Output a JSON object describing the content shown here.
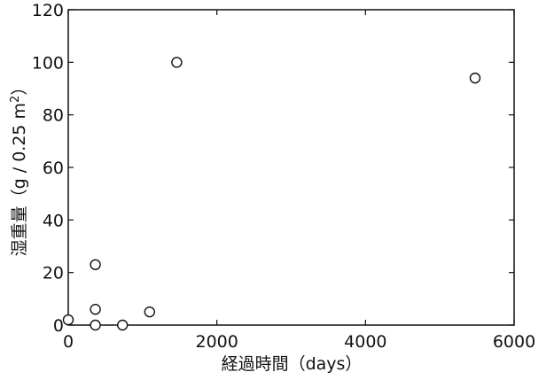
{
  "chart_data": {
    "type": "scatter",
    "title": "",
    "xlabel": "経過時間（days）",
    "ylabel_main": "湿重量（g / 0.25 m",
    "ylabel_sup": "2",
    "ylabel_end": "）",
    "xlim": [
      0,
      6000
    ],
    "ylim": [
      0,
      120
    ],
    "xticks": [
      0,
      2000,
      4000,
      6000
    ],
    "yticks": [
      0,
      20,
      40,
      60,
      80,
      100,
      120
    ],
    "xtick_labels": [
      "0",
      "2000",
      "4000",
      "6000"
    ],
    "ytick_labels": [
      "0",
      "20",
      "40",
      "60",
      "80",
      "100",
      "120"
    ],
    "grid": false,
    "marker": "open-circle",
    "series": [
      {
        "x": [
          0,
          365,
          365,
          365,
          730,
          1095,
          1460,
          5475
        ],
        "y": [
          2,
          23,
          6,
          0,
          0,
          5,
          100,
          94
        ]
      }
    ]
  }
}
